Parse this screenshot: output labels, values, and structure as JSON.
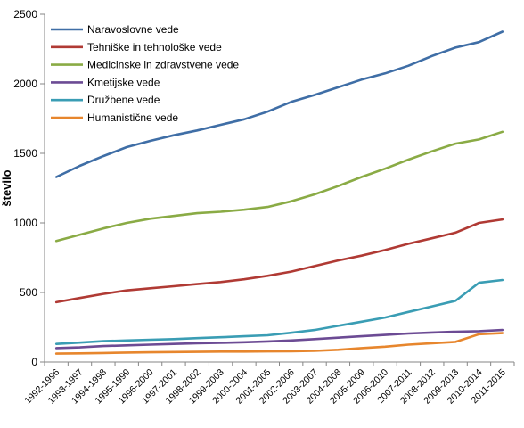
{
  "chart_data": {
    "type": "line",
    "title": "",
    "xlabel": "",
    "ylabel": "število",
    "ylim": [
      0,
      2500
    ],
    "yticks": [
      0,
      500,
      1000,
      1500,
      2000,
      2500
    ],
    "grid": false,
    "legend_position": "top-left",
    "categories": [
      "1992-1996",
      "1993-1997",
      "1994-1998",
      "1995-1999",
      "1996-2000",
      "1997-2001",
      "1998-2002",
      "1999-2003",
      "2000-2004",
      "2001-2005",
      "2002-2006",
      "2003-2007",
      "2004-2008",
      "2005-2009",
      "2006-2010",
      "2007-2011",
      "2008-2012",
      "2009-2013",
      "2010-2014",
      "2011-2015"
    ],
    "series": [
      {
        "name": "Naravoslovne vede",
        "color": "#3f6ea6",
        "values": [
          1330,
          1410,
          1480,
          1545,
          1590,
          1630,
          1665,
          1705,
          1745,
          1800,
          1870,
          1920,
          1975,
          2030,
          2075,
          2130,
          2200,
          2260,
          2300,
          2375
        ]
      },
      {
        "name": "Tehniške in tehnološke vede",
        "color": "#b03a34",
        "values": [
          430,
          460,
          490,
          515,
          530,
          545,
          560,
          575,
          595,
          620,
          650,
          690,
          730,
          765,
          805,
          850,
          890,
          930,
          1000,
          1025
        ]
      },
      {
        "name": "Medicinske in zdravstvene vede",
        "color": "#8aab45",
        "values": [
          870,
          915,
          960,
          1000,
          1030,
          1050,
          1070,
          1080,
          1095,
          1115,
          1155,
          1205,
          1265,
          1330,
          1390,
          1455,
          1515,
          1570,
          1600,
          1655
        ]
      },
      {
        "name": "Kmetijske vede",
        "color": "#6c4b94",
        "values": [
          100,
          105,
          115,
          120,
          125,
          130,
          135,
          138,
          142,
          148,
          155,
          165,
          175,
          185,
          195,
          205,
          212,
          218,
          222,
          230
        ]
      },
      {
        "name": "Družbene vede",
        "color": "#3a9db4",
        "values": [
          130,
          140,
          150,
          155,
          160,
          165,
          172,
          178,
          185,
          192,
          210,
          230,
          260,
          290,
          320,
          360,
          400,
          440,
          570,
          590
        ]
      },
      {
        "name": "Humanistične vede",
        "color": "#e7862d",
        "values": [
          60,
          62,
          65,
          68,
          70,
          72,
          73,
          75,
          75,
          76,
          77,
          80,
          88,
          100,
          110,
          125,
          135,
          145,
          200,
          208
        ]
      }
    ]
  }
}
